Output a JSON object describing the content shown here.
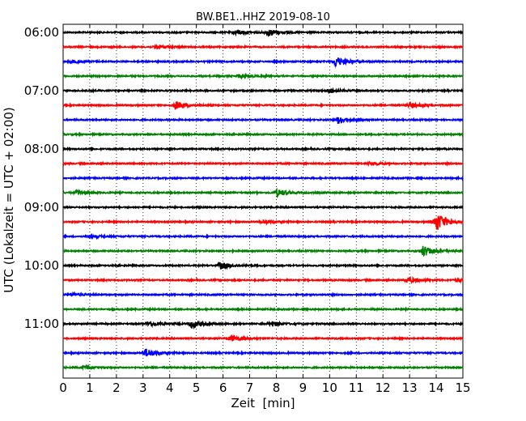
{
  "chart_data": {
    "type": "line",
    "title": "BW.BE1..HHZ 2019-08-10",
    "xlabel": "Zeit  [min]",
    "ylabel": "UTC (Lokalzeit = UTC + 02:00)",
    "xlim": [
      0,
      15
    ],
    "x_ticks": [
      "0",
      "1",
      "2",
      "3",
      "4",
      "5",
      "6",
      "7",
      "8",
      "9",
      "10",
      "11",
      "12",
      "13",
      "14",
      "15"
    ],
    "y_tick_labels": [
      "06:00",
      "07:00",
      "08:00",
      "09:00",
      "10:00",
      "11:00"
    ],
    "trace_start_times": [
      "06:00",
      "06:15",
      "06:30",
      "06:45",
      "07:00",
      "07:15",
      "07:30",
      "07:45",
      "08:00",
      "08:15",
      "08:30",
      "08:45",
      "09:00",
      "09:15",
      "09:30",
      "09:45",
      "10:00",
      "10:15",
      "10:30",
      "10:45",
      "11:00",
      "11:15",
      "11:30",
      "11:45"
    ],
    "trace_colors": [
      "#000000",
      "#ff0000",
      "#0000ff",
      "#008000"
    ],
    "grid": "vertical dotted",
    "events": [
      {
        "trace": 0,
        "t": 6.5,
        "amp": 0.35
      },
      {
        "trace": 0,
        "t": 7.7,
        "amp": 0.45
      },
      {
        "trace": 1,
        "t": 3.5,
        "amp": 0.3
      },
      {
        "trace": 2,
        "t": 0.3,
        "amp": 0.2
      },
      {
        "trace": 2,
        "t": 10.2,
        "amp": 0.7
      },
      {
        "trace": 3,
        "t": 6.6,
        "amp": 0.25
      },
      {
        "trace": 4,
        "t": 10.0,
        "amp": 0.3
      },
      {
        "trace": 5,
        "t": 4.2,
        "amp": 0.55
      },
      {
        "trace": 5,
        "t": 13.0,
        "amp": 0.35
      },
      {
        "trace": 6,
        "t": 10.3,
        "amp": 0.5
      },
      {
        "trace": 9,
        "t": 11.5,
        "amp": 0.2
      },
      {
        "trace": 10,
        "t": 15.0,
        "amp": 0.15
      },
      {
        "trace": 11,
        "t": 0.5,
        "amp": 0.3
      },
      {
        "trace": 11,
        "t": 8.0,
        "amp": 0.5
      },
      {
        "trace": 13,
        "t": 14.0,
        "amp": 1.3
      },
      {
        "trace": 13,
        "t": 7.5,
        "amp": 0.3
      },
      {
        "trace": 14,
        "t": 1.0,
        "amp": 0.2
      },
      {
        "trace": 15,
        "t": 13.5,
        "amp": 0.75
      },
      {
        "trace": 16,
        "t": 5.9,
        "amp": 0.45
      },
      {
        "trace": 17,
        "t": 12.9,
        "amp": 0.4
      },
      {
        "trace": 17,
        "t": 14.8,
        "amp": 0.2
      },
      {
        "trace": 18,
        "t": 0.3,
        "amp": 0.2
      },
      {
        "trace": 20,
        "t": 3.2,
        "amp": 0.35
      },
      {
        "trace": 20,
        "t": 4.8,
        "amp": 0.5
      },
      {
        "trace": 20,
        "t": 7.8,
        "amp": 0.35
      },
      {
        "trace": 21,
        "t": 6.3,
        "amp": 0.45
      },
      {
        "trace": 22,
        "t": 3.1,
        "amp": 0.6
      },
      {
        "trace": 23,
        "t": 0.8,
        "amp": 0.25
      }
    ]
  }
}
